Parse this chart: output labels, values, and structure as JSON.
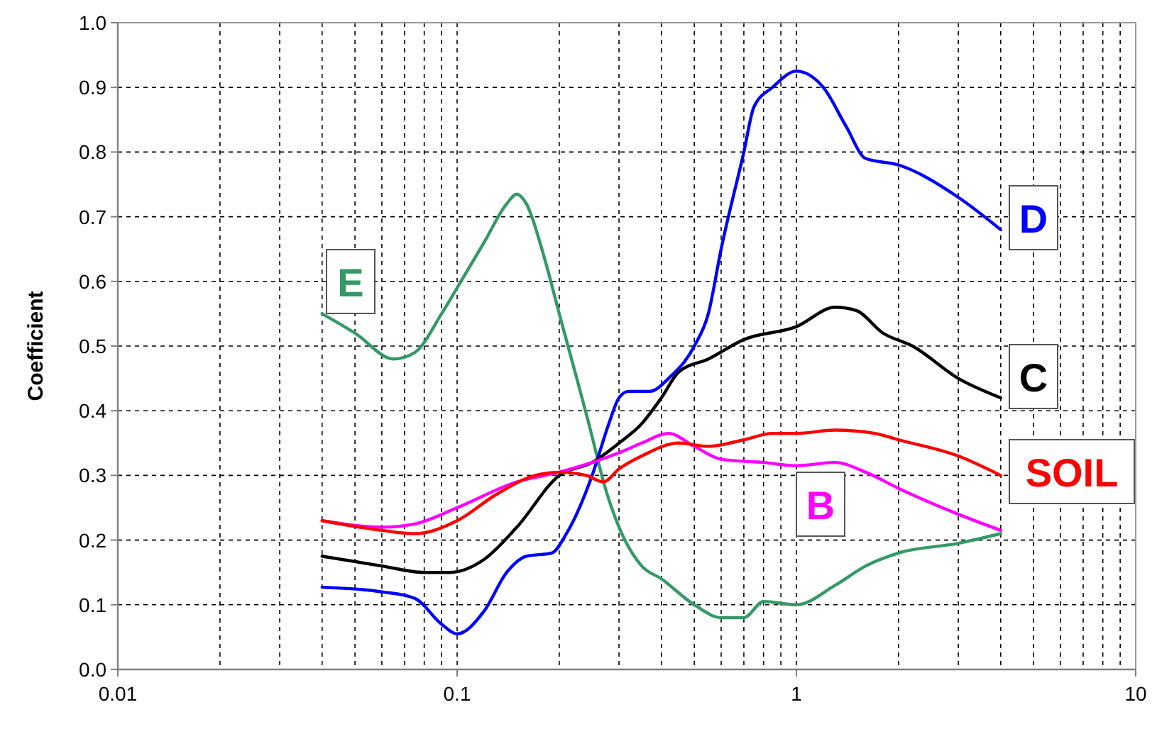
{
  "chart_data": {
    "type": "line",
    "ylabel": "Coefficient",
    "log": "x",
    "grid": true,
    "marker": "none",
    "line_style": "solid",
    "xlim": [
      0.01,
      10
    ],
    "xticks": [
      0.01,
      0.1,
      1,
      10
    ],
    "ylim": [
      0,
      1
    ],
    "yticks": [
      {
        "value": 0,
        "label": "0.0"
      },
      0.1,
      0.2,
      0.3,
      0.4,
      0.5,
      0.6,
      0.7,
      0.8,
      0.9,
      {
        "value": 1,
        "label": "1.0"
      }
    ],
    "series": [
      {
        "name": "E",
        "color": "#339966",
        "x": [
          0.04,
          0.05,
          0.065,
          0.075,
          0.09,
          0.1,
          0.12,
          0.14,
          0.15,
          0.16,
          0.18,
          0.2,
          0.25,
          0.27,
          0.3,
          0.35,
          0.4,
          0.5,
          0.6,
          0.7,
          0.8,
          1.0,
          1.3,
          1.6,
          2,
          3,
          4
        ],
        "values": [
          0.55,
          0.52,
          0.48,
          0.49,
          0.55,
          0.59,
          0.66,
          0.72,
          0.735,
          0.72,
          0.64,
          0.55,
          0.36,
          0.29,
          0.22,
          0.16,
          0.14,
          0.1,
          0.08,
          0.08,
          0.105,
          0.1,
          0.13,
          0.16,
          0.18,
          0.195,
          0.21
        ]
      },
      {
        "name": "D",
        "color": "#0000ff",
        "x": [
          0.04,
          0.06,
          0.075,
          0.09,
          0.1,
          0.12,
          0.14,
          0.16,
          0.19,
          0.21,
          0.25,
          0.28,
          0.3,
          0.32,
          0.37,
          0.42,
          0.5,
          0.55,
          0.6,
          0.7,
          0.75,
          0.85,
          1.0,
          1.2,
          1.4,
          1.6,
          2,
          3,
          4
        ],
        "values": [
          0.127,
          0.12,
          0.11,
          0.07,
          0.055,
          0.09,
          0.15,
          0.175,
          0.18,
          0.21,
          0.3,
          0.38,
          0.42,
          0.43,
          0.43,
          0.45,
          0.5,
          0.55,
          0.65,
          0.8,
          0.87,
          0.9,
          0.925,
          0.9,
          0.84,
          0.79,
          0.78,
          0.73,
          0.68
        ]
      },
      {
        "name": "C",
        "color": "#000000",
        "x": [
          0.04,
          0.06,
          0.08,
          0.095,
          0.12,
          0.15,
          0.2,
          0.25,
          0.3,
          0.35,
          0.4,
          0.45,
          0.55,
          0.7,
          1.0,
          1.3,
          1.5,
          1.8,
          2.2,
          3,
          4
        ],
        "values": [
          0.175,
          0.16,
          0.15,
          0.15,
          0.17,
          0.22,
          0.3,
          0.32,
          0.35,
          0.38,
          0.42,
          0.46,
          0.48,
          0.51,
          0.53,
          0.56,
          0.555,
          0.52,
          0.5,
          0.45,
          0.42
        ]
      },
      {
        "name": "B",
        "color": "#ff00ff",
        "x": [
          0.04,
          0.06,
          0.075,
          0.1,
          0.15,
          0.2,
          0.25,
          0.3,
          0.35,
          0.42,
          0.5,
          0.6,
          0.8,
          1.0,
          1.3,
          1.6,
          2,
          3,
          4
        ],
        "values": [
          0.23,
          0.22,
          0.225,
          0.25,
          0.29,
          0.305,
          0.32,
          0.335,
          0.35,
          0.365,
          0.345,
          0.325,
          0.32,
          0.315,
          0.32,
          0.305,
          0.28,
          0.24,
          0.215
        ]
      },
      {
        "name": "SOIL",
        "color": "#ff0000",
        "x": [
          0.04,
          0.06,
          0.075,
          0.1,
          0.13,
          0.17,
          0.2,
          0.24,
          0.27,
          0.3,
          0.35,
          0.45,
          0.55,
          0.7,
          0.85,
          1.0,
          1.3,
          1.7,
          2,
          3,
          4
        ],
        "values": [
          0.23,
          0.215,
          0.21,
          0.23,
          0.27,
          0.3,
          0.305,
          0.3,
          0.29,
          0.31,
          0.33,
          0.35,
          0.345,
          0.355,
          0.365,
          0.365,
          0.37,
          0.365,
          0.355,
          0.33,
          0.3
        ]
      }
    ]
  }
}
